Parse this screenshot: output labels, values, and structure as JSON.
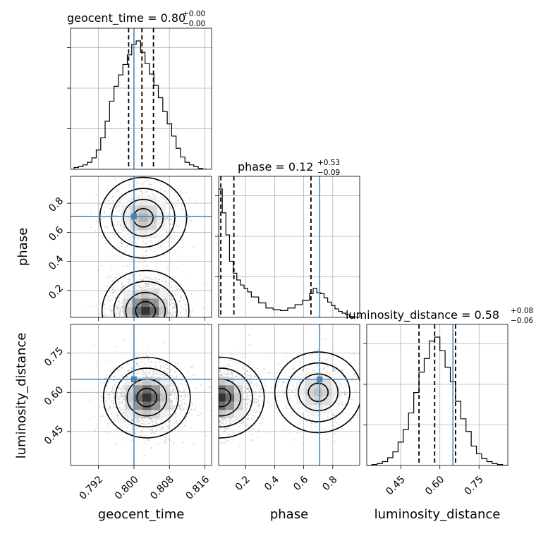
{
  "chart_data": {
    "type": "corner",
    "parameters": [
      "geocent_time",
      "phase",
      "luminosity_distance"
    ],
    "truths": {
      "geocent_time": 0.8,
      "phase": 0.71,
      "luminosity_distance": 0.65
    },
    "truth_color": "#4682b4",
    "grid": true,
    "titles": {
      "geocent_time": {
        "text": "geocent_time = 0.80",
        "plus": "+0.00",
        "minus": "−0.00"
      },
      "phase": {
        "text": "phase = 0.12",
        "plus": "+0.53",
        "minus": "−0.09"
      },
      "luminosity_distance": {
        "text": "luminosity_distance = 0.58",
        "plus": "+0.08",
        "minus": "−0.06"
      }
    },
    "axis_labels": {
      "geocent_time": "geocent_time",
      "phase": "phase",
      "luminosity_distance": "luminosity_distance"
    },
    "ranges": {
      "geocent_time": [
        0.7857,
        0.8175
      ],
      "phase": [
        0.015,
        0.985
      ],
      "luminosity_distance": [
        0.32,
        0.86
      ]
    },
    "ticks": {
      "geocent_time": {
        "values": [
          0.792,
          0.8,
          0.808,
          0.816
        ],
        "labels": [
          "0.792",
          "0.800",
          "0.808",
          "0.816"
        ]
      },
      "phase": {
        "values": [
          0.2,
          0.4,
          0.6,
          0.8
        ],
        "labels": [
          "0.2",
          "0.4",
          "0.6",
          "0.8"
        ]
      },
      "luminosity_distance": {
        "values": [
          0.45,
          0.6,
          0.75
        ],
        "labels": [
          "0.45",
          "0.60",
          "0.75"
        ]
      }
    },
    "quantiles": {
      "geocent_time": [
        0.7988,
        0.8018,
        0.8044
      ],
      "phase": [
        0.03,
        0.12,
        0.65
      ],
      "luminosity_distance": [
        0.52,
        0.58,
        0.66
      ]
    },
    "histograms": {
      "geocent_time": {
        "bins": [
          0.7865,
          0.7875,
          0.7885,
          0.7895,
          0.7905,
          0.7915,
          0.7925,
          0.7935,
          0.7945,
          0.7955,
          0.7965,
          0.7975,
          0.7985,
          0.7995,
          0.8005,
          0.8015,
          0.8025,
          0.8035,
          0.8045,
          0.8055,
          0.8065,
          0.8075,
          0.8085,
          0.8095,
          0.8105,
          0.8115,
          0.8125,
          0.8135,
          0.8145,
          0.8155,
          0.8165
        ],
        "counts": [
          2,
          3,
          5,
          8,
          13,
          22,
          36,
          55,
          78,
          95,
          108,
          120,
          131,
          143,
          147,
          134,
          121,
          109,
          96,
          82,
          66,
          52,
          38,
          24,
          14,
          8,
          5,
          3,
          1,
          0
        ]
      },
      "phase": {
        "bins": [
          0.015,
          0.04,
          0.065,
          0.09,
          0.115,
          0.14,
          0.165,
          0.19,
          0.215,
          0.24,
          0.29,
          0.34,
          0.39,
          0.44,
          0.49,
          0.54,
          0.59,
          0.64,
          0.665,
          0.69,
          0.715,
          0.74,
          0.765,
          0.79,
          0.815,
          0.84,
          0.865,
          0.89,
          0.915,
          0.94,
          0.985
        ],
        "counts": [
          151,
          123,
          97,
          66,
          52,
          44,
          38,
          34,
          30,
          24,
          17,
          11,
          9,
          8,
          11,
          15,
          20,
          28,
          34,
          29,
          28,
          23,
          18,
          14,
          10,
          7,
          5,
          3,
          1,
          0
        ]
      },
      "luminosity_distance": {
        "bins": [
          0.32,
          0.34,
          0.36,
          0.38,
          0.4,
          0.42,
          0.44,
          0.46,
          0.48,
          0.5,
          0.52,
          0.54,
          0.56,
          0.58,
          0.6,
          0.62,
          0.64,
          0.66,
          0.68,
          0.7,
          0.72,
          0.74,
          0.76,
          0.78,
          0.8,
          0.82,
          0.84,
          0.86
        ],
        "counts": [
          0,
          1,
          2,
          4,
          8,
          14,
          24,
          37,
          54,
          75,
          96,
          110,
          128,
          132,
          118,
          101,
          86,
          66,
          48,
          35,
          20,
          12,
          7,
          4,
          2,
          1,
          0
        ]
      }
    },
    "density_peaks": {
      "phase_vs_geocent_time": [
        {
          "x": 0.8026,
          "y": 0.06,
          "weight": 1.0
        },
        {
          "x": 0.8021,
          "y": 0.7,
          "weight": 0.38
        }
      ],
      "luminosity_distance_vs_geocent_time": [
        {
          "x": 0.8029,
          "y": 0.58,
          "weight": 1.0
        }
      ],
      "luminosity_distance_vs_phase": [
        {
          "x": 0.03,
          "y": 0.58,
          "weight": 1.0
        },
        {
          "x": 0.7,
          "y": 0.6,
          "weight": 0.3
        }
      ]
    }
  }
}
